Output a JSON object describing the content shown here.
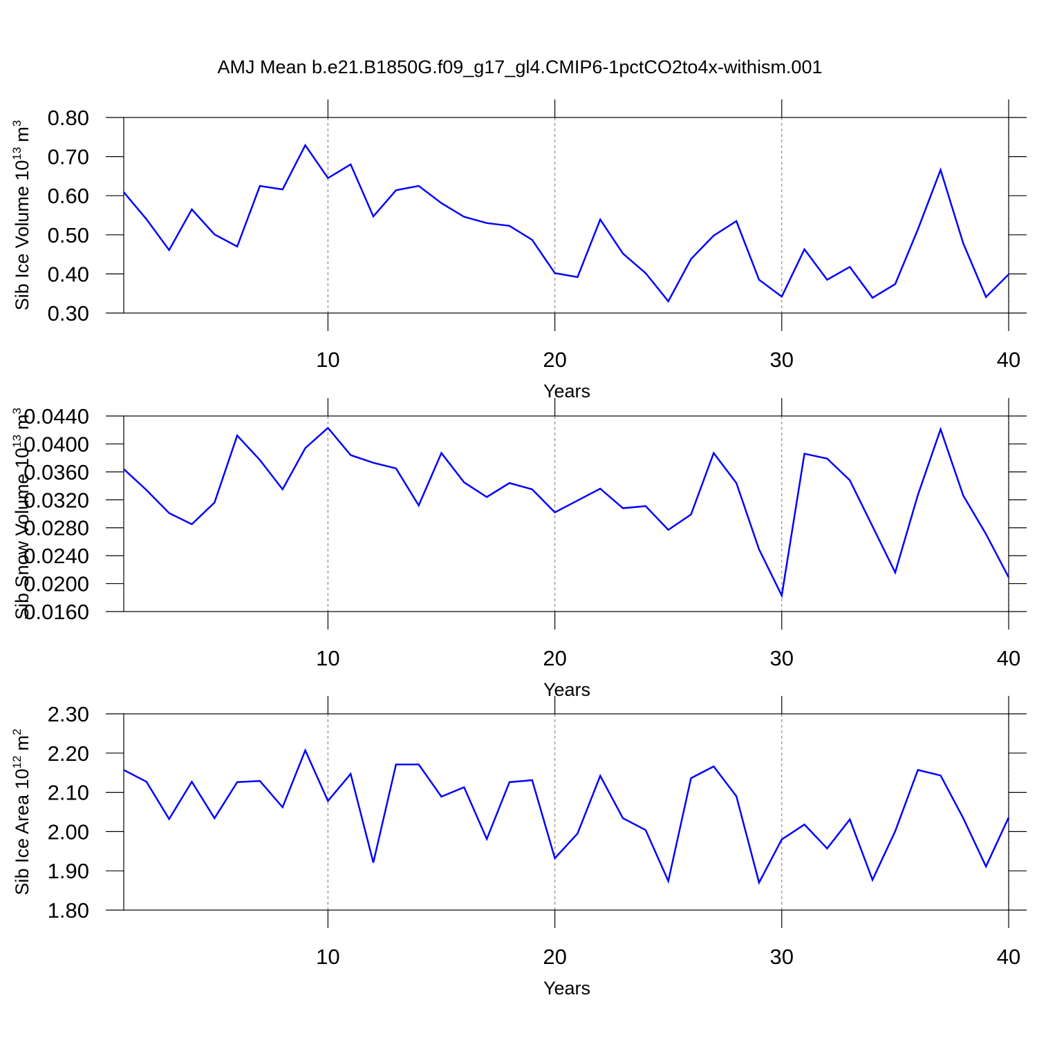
{
  "chart_data": [
    {
      "type": "line",
      "title": "AMJ Mean b.e21.B1850G.f09_g17_gl4.CMIP6-1pctCO2to4x-withism.001",
      "xlabel": "Years",
      "ylabel": "Sib Ice Volume 10",
      "ylabel_exponent": "13",
      "ylabel_unit": "m",
      "ylabel_unit_exponent": "3",
      "x": [
        1,
        2,
        3,
        4,
        5,
        6,
        7,
        8,
        9,
        10,
        11,
        12,
        13,
        14,
        15,
        16,
        17,
        18,
        19,
        20,
        21,
        22,
        23,
        24,
        25,
        26,
        27,
        28,
        29,
        30,
        31,
        32,
        33,
        34,
        35,
        36,
        37,
        38,
        39,
        40
      ],
      "xlim": [
        1,
        40
      ],
      "xticks": [
        10,
        20,
        30,
        40
      ],
      "grid": "x",
      "ylim": [
        0.3,
        0.8
      ],
      "yticks": [
        {
          "value": 0.3,
          "label": "0.30"
        },
        {
          "value": 0.4,
          "label": "0.40"
        },
        {
          "value": 0.5,
          "label": "0.50"
        },
        {
          "value": 0.6,
          "label": "0.60"
        },
        {
          "value": 0.7,
          "label": "0.70"
        },
        {
          "value": 0.8,
          "label": "0.80"
        }
      ],
      "series": [
        {
          "color": "#0000ff",
          "values": [
            0.609,
            0.54,
            0.461,
            0.565,
            0.501,
            0.47,
            0.625,
            0.616,
            0.729,
            0.645,
            0.68,
            0.547,
            0.614,
            0.625,
            0.581,
            0.546,
            0.53,
            0.523,
            0.487,
            0.402,
            0.392,
            0.539,
            0.452,
            0.402,
            0.33,
            0.438,
            0.498,
            0.535,
            0.385,
            0.342,
            0.463,
            0.385,
            0.418,
            0.339,
            0.374,
            0.514,
            0.666,
            0.478,
            0.341,
            0.399
          ]
        }
      ]
    },
    {
      "type": "line",
      "xlabel": "Years",
      "ylabel": "Sib Snow Volume 10",
      "ylabel_exponent": "13",
      "ylabel_unit": "m",
      "ylabel_unit_exponent": "3",
      "x": [
        1,
        2,
        3,
        4,
        5,
        6,
        7,
        8,
        9,
        10,
        11,
        12,
        13,
        14,
        15,
        16,
        17,
        18,
        19,
        20,
        21,
        22,
        23,
        24,
        25,
        26,
        27,
        28,
        29,
        30,
        31,
        32,
        33,
        34,
        35,
        36,
        37,
        38,
        39,
        40
      ],
      "xlim": [
        1,
        40
      ],
      "xticks": [
        10,
        20,
        30,
        40
      ],
      "grid": "x",
      "ylim": [
        0.016,
        0.044
      ],
      "yticks": [
        {
          "value": 0.016,
          "label": "0.0160"
        },
        {
          "value": 0.02,
          "label": "0.0200"
        },
        {
          "value": 0.024,
          "label": "0.0240"
        },
        {
          "value": 0.028,
          "label": "0.0280"
        },
        {
          "value": 0.032,
          "label": "0.0320"
        },
        {
          "value": 0.036,
          "label": "0.0360"
        },
        {
          "value": 0.04,
          "label": "0.0400"
        },
        {
          "value": 0.044,
          "label": "0.0440"
        }
      ],
      "series": [
        {
          "color": "#0000ff",
          "values": [
            0.0364,
            0.0334,
            0.0301,
            0.0285,
            0.0316,
            0.0412,
            0.0377,
            0.0335,
            0.0394,
            0.0423,
            0.0384,
            0.0373,
            0.0365,
            0.0312,
            0.0387,
            0.0345,
            0.0324,
            0.0344,
            0.0335,
            0.0302,
            0.0319,
            0.0336,
            0.0308,
            0.0311,
            0.0277,
            0.0299,
            0.0387,
            0.0344,
            0.0249,
            0.0183,
            0.0386,
            0.0379,
            0.0348,
            0.0282,
            0.0216,
            0.0327,
            0.0421,
            0.0326,
            0.0271,
            0.0209
          ]
        }
      ]
    },
    {
      "type": "line",
      "xlabel": "Years",
      "ylabel": "Sib Ice Area 10",
      "ylabel_exponent": "12",
      "ylabel_unit": "m",
      "ylabel_unit_exponent": "2",
      "x": [
        1,
        2,
        3,
        4,
        5,
        6,
        7,
        8,
        9,
        10,
        11,
        12,
        13,
        14,
        15,
        16,
        17,
        18,
        19,
        20,
        21,
        22,
        23,
        24,
        25,
        26,
        27,
        28,
        29,
        30,
        31,
        32,
        33,
        34,
        35,
        36,
        37,
        38,
        39,
        40
      ],
      "xlim": [
        1,
        40
      ],
      "xticks": [
        10,
        20,
        30,
        40
      ],
      "grid": "x",
      "ylim": [
        1.8,
        2.3
      ],
      "yticks": [
        {
          "value": 1.8,
          "label": "1.80"
        },
        {
          "value": 1.9,
          "label": "1.90"
        },
        {
          "value": 2.0,
          "label": "2.00"
        },
        {
          "value": 2.1,
          "label": "2.10"
        },
        {
          "value": 2.2,
          "label": "2.20"
        },
        {
          "value": 2.3,
          "label": "2.30"
        }
      ],
      "series": [
        {
          "color": "#0000ff",
          "values": [
            2.157,
            2.127,
            2.032,
            2.127,
            2.034,
            2.126,
            2.129,
            2.062,
            2.207,
            2.078,
            2.147,
            1.921,
            2.171,
            2.171,
            2.089,
            2.113,
            1.981,
            2.126,
            2.131,
            1.932,
            1.995,
            2.142,
            2.034,
            2.004,
            1.874,
            2.136,
            2.166,
            2.09,
            1.87,
            1.98,
            2.018,
            1.957,
            2.031,
            1.877,
            2.001,
            2.157,
            2.143,
            2.034,
            1.911,
            2.036
          ]
        }
      ]
    }
  ]
}
